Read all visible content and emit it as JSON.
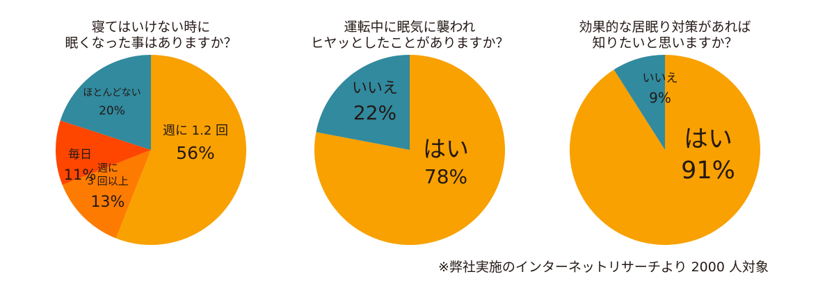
{
  "colors": {
    "orange": "#f8a100",
    "teal": "#318a9e",
    "red": "#fe4600",
    "dark_orange": "#fd7b01",
    "text": "#231815"
  },
  "chart_data": [
    {
      "type": "pie",
      "title_lines": [
        "寝てはいけない時に",
        "眠くなった事はありますか？"
      ],
      "slices": [
        {
          "label": "週に 1.2 回",
          "pct_text": "56%",
          "value": 56,
          "color": "#f8a100"
        },
        {
          "label": "週に\n3 回以上",
          "pct_text": "13%",
          "value": 13,
          "color": "#fd7b01"
        },
        {
          "label": "毎日",
          "pct_text": "11%",
          "value": 11,
          "color": "#fe4600"
        },
        {
          "label": "ほとんどない",
          "pct_text": "20%",
          "value": 20,
          "color": "#318a9e"
        }
      ]
    },
    {
      "type": "pie",
      "title_lines": [
        "運転中に眠気に襲われ",
        "ヒヤッとしたことがありますか？"
      ],
      "slices": [
        {
          "label": "はい",
          "pct_text": "78%",
          "value": 78,
          "color": "#f8a100"
        },
        {
          "label": "いいえ",
          "pct_text": "22%",
          "value": 22,
          "color": "#318a9e"
        }
      ]
    },
    {
      "type": "pie",
      "title_lines": [
        "効果的な居眠り対策があれば",
        "知りたいと思いますか？"
      ],
      "slices": [
        {
          "label": "はい",
          "pct_text": "91%",
          "value": 91,
          "color": "#f8a100"
        },
        {
          "label": "いいえ",
          "pct_text": "9%",
          "value": 9,
          "color": "#318a9e"
        }
      ]
    }
  ],
  "footnote": "※弊社実施のインターネットリサーチより 2000 人対象"
}
